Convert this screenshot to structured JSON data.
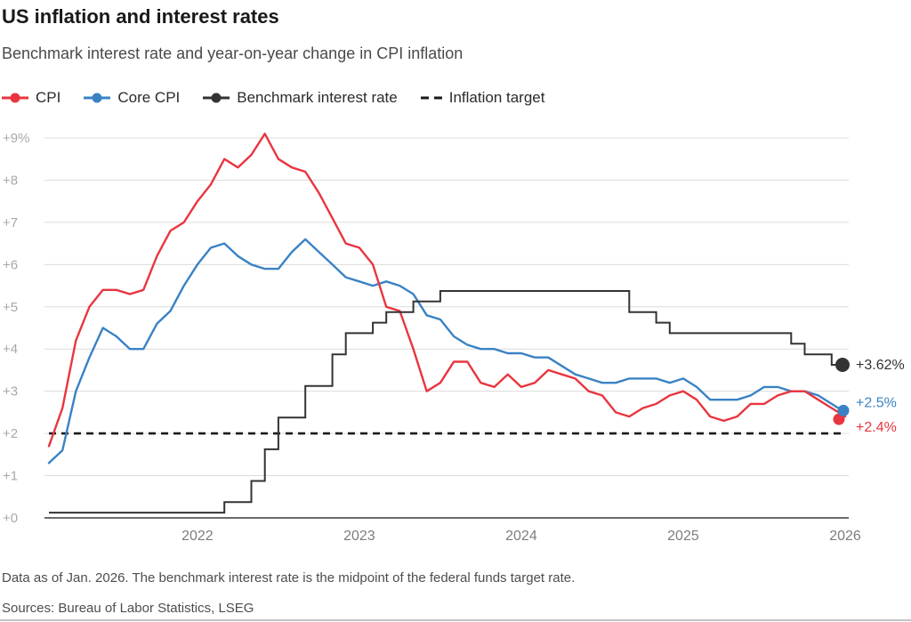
{
  "header": {
    "title": "US inflation and interest rates",
    "subtitle": "Benchmark interest rate and year-on-year change in CPI inflation"
  },
  "legend": {
    "items": [
      {
        "label": "CPI",
        "color": "#e9353f",
        "marker": "line-dot"
      },
      {
        "label": "Core CPI",
        "color": "#3a82c4",
        "marker": "line-dot"
      },
      {
        "label": "Benchmark interest rate",
        "color": "#333333",
        "marker": "line-dot"
      },
      {
        "label": "Inflation target",
        "color": "#1a1a1a",
        "marker": "dashed-line"
      }
    ]
  },
  "chart_data": {
    "type": "line",
    "title": "US inflation and interest rates",
    "subtitle": "Benchmark interest rate and year-on-year change in CPI inflation",
    "x_unit": "month",
    "x_start": "2021-02",
    "x_end": "2026-01",
    "x_step_months": 1,
    "ylim": [
      0,
      9
    ],
    "grid": "horizontal-only",
    "legend_position": "top-left",
    "y_ticks": {
      "values": [
        0,
        1,
        2,
        3,
        4,
        5,
        6,
        7,
        8,
        9
      ],
      "labels": [
        "+0",
        "+1",
        "+2",
        "+3",
        "+4",
        "+5",
        "+6",
        "+7",
        "+8",
        "+9%"
      ]
    },
    "x_ticks": {
      "month_indices": [
        11,
        23,
        35,
        47,
        59
      ],
      "labels": [
        "2022",
        "2023",
        "2024",
        "2025",
        "2026"
      ]
    },
    "inflation_target": 2.0,
    "series": [
      {
        "name": "CPI",
        "color": "#e9353f",
        "style": "line",
        "end_label": "+2.4%",
        "values": [
          1.7,
          2.6,
          4.2,
          5.0,
          5.4,
          5.4,
          5.3,
          5.4,
          6.2,
          6.8,
          7.0,
          7.5,
          7.9,
          8.5,
          8.3,
          8.6,
          9.1,
          8.5,
          8.3,
          8.2,
          7.7,
          7.1,
          6.5,
          6.4,
          6.0,
          5.0,
          4.9,
          4.0,
          3.0,
          3.2,
          3.7,
          3.7,
          3.2,
          3.1,
          3.4,
          3.1,
          3.2,
          3.5,
          3.4,
          3.3,
          3.0,
          2.9,
          2.5,
          2.4,
          2.6,
          2.7,
          2.9,
          3.0,
          2.8,
          2.4,
          2.3,
          2.4,
          2.7,
          2.7,
          2.9,
          3.0,
          3.0,
          2.8,
          2.6,
          2.4
        ]
      },
      {
        "name": "Core CPI",
        "color": "#3a82c4",
        "style": "line",
        "end_label": "+2.5%",
        "values": [
          1.3,
          1.6,
          3.0,
          3.8,
          4.5,
          4.3,
          4.0,
          4.0,
          4.6,
          4.9,
          5.5,
          6.0,
          6.4,
          6.5,
          6.2,
          6.0,
          5.9,
          5.9,
          6.3,
          6.6,
          6.3,
          6.0,
          5.7,
          5.6,
          5.5,
          5.6,
          5.5,
          5.3,
          4.8,
          4.7,
          4.3,
          4.1,
          4.0,
          4.0,
          3.9,
          3.9,
          3.8,
          3.8,
          3.6,
          3.4,
          3.3,
          3.2,
          3.2,
          3.3,
          3.3,
          3.3,
          3.2,
          3.3,
          3.1,
          2.8,
          2.8,
          2.8,
          2.9,
          3.1,
          3.1,
          3.0,
          3.0,
          2.9,
          2.7,
          2.5
        ]
      },
      {
        "name": "Benchmark interest rate",
        "color": "#333333",
        "style": "step",
        "end_label": "+3.62%",
        "values": [
          0.125,
          0.125,
          0.125,
          0.125,
          0.125,
          0.125,
          0.125,
          0.125,
          0.125,
          0.125,
          0.125,
          0.125,
          0.125,
          0.375,
          0.375,
          0.875,
          1.625,
          2.375,
          2.375,
          3.125,
          3.125,
          3.875,
          4.375,
          4.375,
          4.625,
          4.875,
          4.875,
          5.125,
          5.125,
          5.375,
          5.375,
          5.375,
          5.375,
          5.375,
          5.375,
          5.375,
          5.375,
          5.375,
          5.375,
          5.375,
          5.375,
          5.375,
          5.375,
          4.875,
          4.875,
          4.625,
          4.375,
          4.375,
          4.375,
          4.375,
          4.375,
          4.375,
          4.375,
          4.375,
          4.375,
          4.125,
          3.875,
          3.875,
          3.625,
          3.625
        ]
      },
      {
        "name": "Inflation target",
        "color": "#1a1a1a",
        "style": "dashed-constant",
        "constant": 2.0,
        "end_label": null
      }
    ]
  },
  "footer": {
    "note": "Data as of Jan. 2026. The benchmark interest rate is the midpoint of the federal funds target rate.",
    "sources": "Sources: Bureau of Labor Statistics, LSEG"
  }
}
